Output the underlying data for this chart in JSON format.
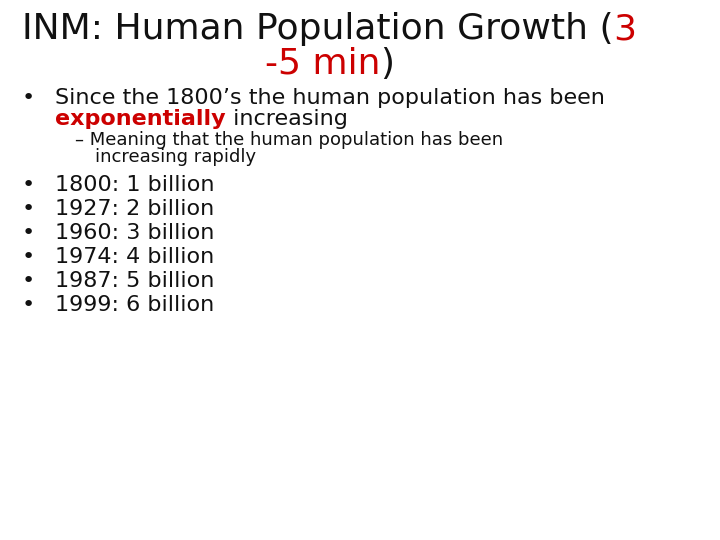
{
  "background_color": "#ffffff",
  "title_line1_black": "INM: Human Population Growth (",
  "title_line1_red": "3",
  "title_line2_red": "-5 min",
  "title_line2_black": ")",
  "title_fontsize": 26,
  "title_fontweight": "normal",
  "bullet1_line1": "Since the 1800’s the human population has been",
  "bullet1_line2_red": "exponentially",
  "bullet1_line2_black": " increasing",
  "sub_line1": "– Meaning that the human population has been",
  "sub_line2": "increasing rapidly",
  "bullet_items": [
    "1800: 1 billion",
    "1927: 2 billion",
    "1960: 3 billion",
    "1974: 4 billion",
    "1987: 5 billion",
    "1999: 6 billion"
  ],
  "bullet_fontsize": 16,
  "sub_bullet_fontsize": 13,
  "red_color": "#cc0000",
  "black_color": "#111111",
  "bullet_char": "•",
  "font_family": "DejaVu Sans"
}
